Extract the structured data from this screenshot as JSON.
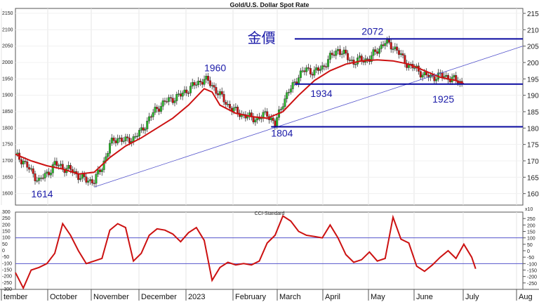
{
  "chart_data": [
    {
      "type": "candlestick",
      "title": "Gold/U.S. Dollar Spot Rate",
      "left_axis_ticks": [
        2150,
        2100,
        2050,
        2000,
        1950,
        1900,
        1850,
        1800,
        1750,
        1700,
        1650,
        1600
      ],
      "right_axis_ticks": [
        215,
        210,
        205,
        200,
        195,
        190,
        185,
        180,
        175,
        170,
        165,
        160
      ],
      "right_axis_multiplier": "x10",
      "ylim": [
        1565,
        2165
      ],
      "months": [
        "tember",
        "October",
        "November",
        "December",
        "2023",
        "February",
        "March",
        "April",
        "May",
        "June",
        "July",
        "Aug"
      ],
      "price_path": [
        [
          0,
          1715
        ],
        [
          4,
          1700
        ],
        [
          8,
          1665
        ],
        [
          12,
          1640
        ],
        [
          16,
          1660
        ],
        [
          20,
          1690
        ],
        [
          24,
          1680
        ],
        [
          28,
          1672
        ],
        [
          32,
          1655
        ],
        [
          36,
          1640
        ],
        [
          40,
          1640
        ],
        [
          44,
          1680
        ],
        [
          48,
          1750
        ],
        [
          52,
          1770
        ],
        [
          56,
          1760
        ],
        [
          60,
          1770
        ],
        [
          64,
          1790
        ],
        [
          68,
          1830
        ],
        [
          72,
          1860
        ],
        [
          76,
          1880
        ],
        [
          80,
          1890
        ],
        [
          84,
          1900
        ],
        [
          88,
          1920
        ],
        [
          92,
          1935
        ],
        [
          96,
          1950
        ],
        [
          100,
          1930
        ],
        [
          104,
          1900
        ],
        [
          108,
          1870
        ],
        [
          112,
          1850
        ],
        [
          116,
          1840
        ],
        [
          120,
          1830
        ],
        [
          124,
          1830
        ],
        [
          128,
          1845
        ],
        [
          132,
          1810
        ],
        [
          136,
          1880
        ],
        [
          140,
          1920
        ],
        [
          144,
          1960
        ],
        [
          148,
          1980
        ],
        [
          152,
          1970
        ],
        [
          156,
          1985
        ],
        [
          160,
          2015
        ],
        [
          164,
          2040
        ],
        [
          168,
          2020
        ],
        [
          172,
          2000
        ],
        [
          176,
          2010
        ],
        [
          180,
          2010
        ],
        [
          184,
          2040
        ],
        [
          188,
          2060
        ],
        [
          192,
          2050
        ],
        [
          196,
          2020
        ],
        [
          200,
          1990
        ],
        [
          204,
          1980
        ],
        [
          208,
          1960
        ],
        [
          212,
          1955
        ],
        [
          216,
          1960
        ],
        [
          220,
          1955
        ],
        [
          224,
          1945
        ],
        [
          228,
          1935
        ]
      ],
      "moving_average": {
        "points": [
          [
            0,
            1720
          ],
          [
            8,
            1700
          ],
          [
            16,
            1685
          ],
          [
            24,
            1675
          ],
          [
            32,
            1660
          ],
          [
            40,
            1665
          ],
          [
            48,
            1710
          ],
          [
            56,
            1745
          ],
          [
            64,
            1770
          ],
          [
            72,
            1800
          ],
          [
            80,
            1830
          ],
          [
            88,
            1870
          ],
          [
            96,
            1920
          ],
          [
            100,
            1910
          ],
          [
            104,
            1870
          ],
          [
            112,
            1845
          ],
          [
            120,
            1835
          ],
          [
            128,
            1830
          ],
          [
            136,
            1850
          ],
          [
            144,
            1900
          ],
          [
            152,
            1945
          ],
          [
            160,
            1975
          ],
          [
            168,
            1995
          ],
          [
            176,
            2005
          ],
          [
            184,
            2008
          ],
          [
            192,
            2005
          ],
          [
            200,
            1995
          ],
          [
            208,
            1975
          ],
          [
            216,
            1955
          ],
          [
            224,
            1945
          ],
          [
            228,
            1935
          ]
        ],
        "color": "#cc1111"
      },
      "trendline": {
        "from": [
          40,
          1620
        ],
        "to": [
          258,
          2050
        ],
        "color": "#5555cc"
      },
      "levels": [
        {
          "y": 2072,
          "x0": 142,
          "x1": 258
        },
        {
          "y": 1934,
          "x0": 142,
          "x1": 258
        },
        {
          "y": 1804,
          "x0": 130,
          "x1": 258
        }
      ],
      "annotations": [
        {
          "text": "1614",
          "x": 8,
          "y": 1614
        },
        {
          "text": "1960",
          "x": 96,
          "y": 1960
        },
        {
          "text": "1804",
          "x": 130,
          "y": 1804
        },
        {
          "text": "1934",
          "x": 150,
          "y": 1934
        },
        {
          "text": "2072",
          "x": 176,
          "y": 2072
        },
        {
          "text": "1925",
          "x": 212,
          "y": 1925
        },
        {
          "text": "金價",
          "x": 118,
          "y": 2060
        }
      ],
      "colors": {
        "up": "#26b826",
        "down": "#cc1111",
        "levels": "#0a0aa0"
      }
    },
    {
      "type": "line",
      "title": "CCI-Standard",
      "ylim": [
        -300,
        300
      ],
      "left_axis_ticks": [
        300,
        250,
        200,
        150,
        100,
        50,
        0,
        -50,
        -100,
        -150,
        -200,
        -250,
        -300
      ],
      "right_axis_ticks": [
        250,
        200,
        150,
        100,
        50,
        0,
        -50,
        -100,
        -150,
        -200,
        -250
      ],
      "reference_lines": [
        100,
        -100
      ],
      "series": [
        {
          "values": [
            [
              0,
              -170
            ],
            [
              4,
              -290
            ],
            [
              8,
              -150
            ],
            [
              12,
              -130
            ],
            [
              16,
              -100
            ],
            [
              20,
              -20
            ],
            [
              24,
              210
            ],
            [
              28,
              120
            ],
            [
              32,
              0
            ],
            [
              36,
              -100
            ],
            [
              40,
              -80
            ],
            [
              44,
              -60
            ],
            [
              48,
              160
            ],
            [
              52,
              210
            ],
            [
              56,
              180
            ],
            [
              60,
              -80
            ],
            [
              64,
              -20
            ],
            [
              68,
              120
            ],
            [
              72,
              170
            ],
            [
              76,
              160
            ],
            [
              80,
              130
            ],
            [
              84,
              70
            ],
            [
              88,
              140
            ],
            [
              92,
              180
            ],
            [
              96,
              80
            ],
            [
              100,
              -230
            ],
            [
              104,
              -130
            ],
            [
              108,
              -90
            ],
            [
              112,
              -110
            ],
            [
              116,
              -100
            ],
            [
              120,
              -110
            ],
            [
              124,
              -80
            ],
            [
              128,
              60
            ],
            [
              132,
              120
            ],
            [
              136,
              270
            ],
            [
              140,
              230
            ],
            [
              144,
              150
            ],
            [
              148,
              120
            ],
            [
              152,
              110
            ],
            [
              156,
              100
            ],
            [
              160,
              200
            ],
            [
              164,
              100
            ],
            [
              168,
              -30
            ],
            [
              172,
              -90
            ],
            [
              176,
              -70
            ],
            [
              180,
              -10
            ],
            [
              184,
              -80
            ],
            [
              188,
              -60
            ],
            [
              192,
              260
            ],
            [
              196,
              90
            ],
            [
              200,
              60
            ],
            [
              204,
              -120
            ],
            [
              208,
              -160
            ],
            [
              212,
              -110
            ],
            [
              216,
              -50
            ],
            [
              220,
              0
            ],
            [
              224,
              -60
            ],
            [
              228,
              50
            ],
            [
              232,
              -50
            ],
            [
              234,
              -140
            ]
          ],
          "color": "#cc1111"
        }
      ]
    }
  ]
}
